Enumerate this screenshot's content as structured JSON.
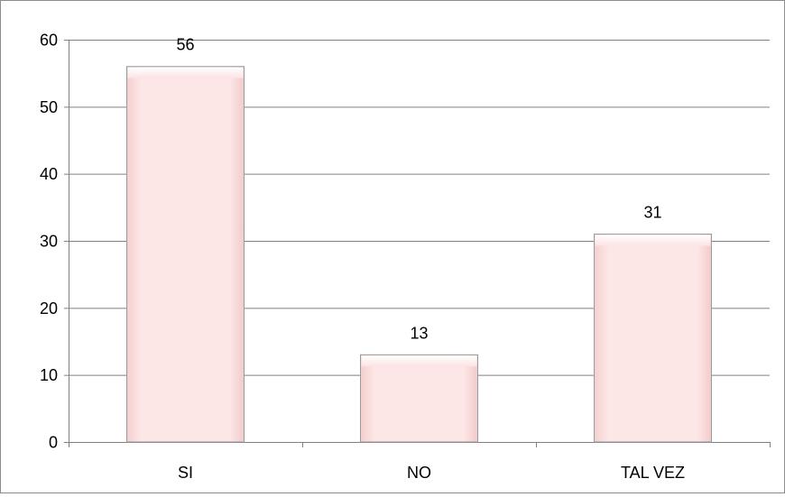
{
  "chart_data": {
    "type": "bar",
    "title": "",
    "xlabel": "",
    "ylabel": "",
    "categories": [
      "SI",
      "NO",
      "TAL VEZ"
    ],
    "values": [
      56,
      13,
      31
    ],
    "data_labels": [
      "56",
      "13",
      "31"
    ],
    "ylim": [
      0,
      60
    ],
    "yticks": [
      "0",
      "10",
      "20",
      "30",
      "40",
      "50",
      "60"
    ],
    "grid": true,
    "legend": "none",
    "bar_color": "#fde6e6",
    "bar_edge_color": "#9a9a9a",
    "grid_color": "#808080"
  }
}
